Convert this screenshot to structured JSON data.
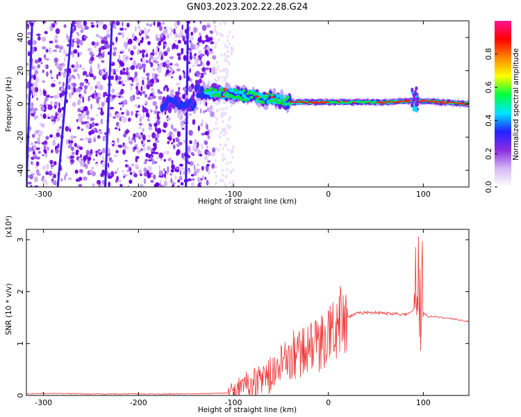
{
  "title": "GN03.2023.202.22.28.G24",
  "chart_data": [
    {
      "type": "heatmap",
      "xlabel": "Height of straight line (km)",
      "ylabel": "Frequency (Hz)",
      "xlim": [
        -318,
        148
      ],
      "ylim": [
        -50,
        50
      ],
      "xticks": [
        -300,
        -200,
        -100,
        0,
        100
      ],
      "yticks": [
        -40,
        -20,
        0,
        20,
        40
      ],
      "colorbar": {
        "label": "Normalized spectral amplitude",
        "range": [
          0,
          1
        ],
        "ticks": [
          0.0,
          0.2,
          0.4,
          0.6,
          0.8
        ],
        "colors": [
          "#ffffff",
          "#d6b8f5",
          "#8a2be2",
          "#2222ff",
          "#00e5ff",
          "#00ff40",
          "#ffff00",
          "#ff8800",
          "#ff0000",
          "#ff1493"
        ]
      },
      "features": {
        "noise_region_x": [
          -318,
          -120
        ],
        "tone_track": [
          [
            -140,
            8
          ],
          [
            -100,
            6
          ],
          [
            -60,
            3
          ],
          [
            -40,
            1
          ],
          [
            0,
            1
          ],
          [
            60,
            1
          ],
          [
            90,
            2
          ],
          [
            148,
            0
          ]
        ]
      }
    },
    {
      "type": "line",
      "xlabel": "Height of straight line (km)",
      "ylabel": "SNR (10 * v/v)",
      "scale_label": "(x10⁴)",
      "xlim": [
        -318,
        148
      ],
      "ylim": [
        0,
        3.2
      ],
      "xticks": [
        -300,
        -200,
        -100,
        0,
        100
      ],
      "yticks": [
        0,
        1,
        2,
        3
      ],
      "color": "#ee3333",
      "x": [
        -318,
        -300,
        -250,
        -200,
        -150,
        -120,
        -100,
        -90,
        -80,
        -70,
        -60,
        -50,
        -40,
        -30,
        -20,
        -10,
        0,
        10,
        20,
        30,
        40,
        50,
        60,
        70,
        80,
        85,
        90,
        95,
        100,
        105,
        110,
        120,
        130,
        140,
        148
      ],
      "y": [
        0.03,
        0.04,
        0.03,
        0.03,
        0.03,
        0.04,
        0.05,
        0.2,
        0.25,
        0.3,
        0.4,
        0.55,
        0.7,
        0.8,
        0.9,
        1.0,
        1.15,
        1.35,
        1.5,
        1.58,
        1.6,
        1.6,
        1.58,
        1.58,
        1.56,
        1.58,
        1.65,
        2.4,
        1.6,
        1.52,
        1.52,
        1.5,
        1.48,
        1.45,
        1.42
      ]
    }
  ]
}
